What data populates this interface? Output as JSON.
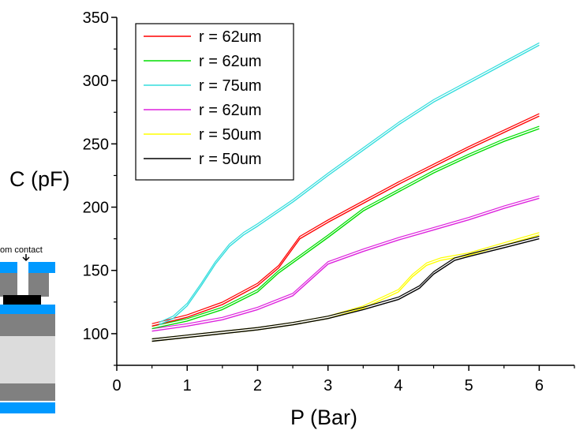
{
  "chart_data": {
    "type": "line",
    "xlabel": "P (Bar)",
    "ylabel": "C (pF)",
    "xlim": [
      0,
      6.5
    ],
    "ylim": [
      75,
      350
    ],
    "xticks": [
      0,
      1,
      2,
      3,
      4,
      5,
      6
    ],
    "yticks": [
      100,
      150,
      200,
      250,
      300,
      350
    ],
    "legend_position": "top-left",
    "grid": false,
    "series": [
      {
        "name": "r = 62um",
        "color": "#ff0000",
        "x": [
          0.5,
          1.0,
          1.5,
          2.0,
          2.3,
          2.6,
          3.0,
          3.5,
          4.0,
          4.5,
          5.0,
          5.5,
          6.0
        ],
        "y": [
          106,
          113,
          123,
          138,
          152,
          175,
          188,
          203,
          218,
          232,
          246,
          259,
          272
        ]
      },
      {
        "name": "r = 62um",
        "color": "#00dd00",
        "x": [
          0.5,
          1.0,
          1.5,
          2.0,
          2.3,
          2.6,
          3.0,
          3.5,
          4.0,
          4.5,
          5.0,
          5.5,
          6.0
        ],
        "y": [
          104,
          110,
          119,
          133,
          148,
          160,
          176,
          197,
          212,
          227,
          240,
          252,
          262
        ]
      },
      {
        "name": "r = 75um",
        "color": "#33dddd",
        "x": [
          0.6,
          0.8,
          1.0,
          1.2,
          1.4,
          1.6,
          1.8,
          2.0,
          2.5,
          3.0,
          3.5,
          4.0,
          4.5,
          5.0,
          5.5,
          6.0
        ],
        "y": [
          107,
          112,
          122,
          138,
          155,
          169,
          178,
          185,
          204,
          225,
          245,
          265,
          283,
          298,
          313,
          328
        ]
      },
      {
        "name": "r = 62um",
        "color": "#dd22dd",
        "x": [
          0.5,
          1.0,
          1.5,
          2.0,
          2.5,
          2.7,
          3.0,
          3.5,
          4.0,
          4.5,
          5.0,
          5.5,
          6.0
        ],
        "y": [
          102,
          106,
          111,
          119,
          130,
          140,
          155,
          165,
          174,
          182,
          190,
          199,
          207
        ]
      },
      {
        "name": "r = 50um",
        "color": "#ffff00",
        "x": [
          0.5,
          1.0,
          1.5,
          2.0,
          2.5,
          3.0,
          3.5,
          4.0,
          4.2,
          4.4,
          4.6,
          5.0,
          5.5,
          6.0
        ],
        "y": [
          94,
          97,
          100,
          103,
          107,
          112,
          120,
          133,
          145,
          154,
          158,
          162,
          170,
          178
        ]
      },
      {
        "name": "r = 50um",
        "color": "#000000",
        "x": [
          0.5,
          1.0,
          1.5,
          2.0,
          2.5,
          3.0,
          3.5,
          4.0,
          4.3,
          4.5,
          4.8,
          5.0,
          5.5,
          6.0
        ],
        "y": [
          94,
          97,
          100,
          103,
          107,
          112,
          119,
          127,
          136,
          147,
          158,
          161,
          168,
          175
        ]
      }
    ]
  },
  "inset": {
    "label": "om contact",
    "colors": {
      "blue": "#0099ff",
      "gray": "#808080",
      "light_gray": "#dcdcdc",
      "black": "#000000"
    }
  }
}
